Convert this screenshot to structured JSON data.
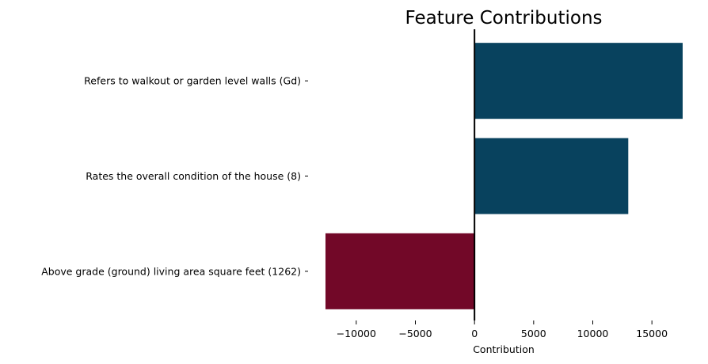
{
  "chart_data": {
    "type": "bar",
    "orientation": "horizontal",
    "title": "Feature Contributions",
    "xlabel": "Contribution",
    "ylabel": "",
    "xlim": [
      -12600,
      17600
    ],
    "xticks": [
      -10000,
      -5000,
      0,
      5000,
      10000,
      15000
    ],
    "xtick_labels": [
      "−10000",
      "−5000",
      "0",
      "5000",
      "10000",
      "15000"
    ],
    "categories": [
      "Refers to walkout or garden level walls (Gd)",
      "Rates the overall condition of the house (8)",
      "Above grade (ground) living area square feet (1262)"
    ],
    "values": [
      17600,
      13000,
      -12600
    ],
    "colors": {
      "positive": "#08425e",
      "negative": "#720828"
    },
    "grid": false,
    "legend": "none"
  }
}
